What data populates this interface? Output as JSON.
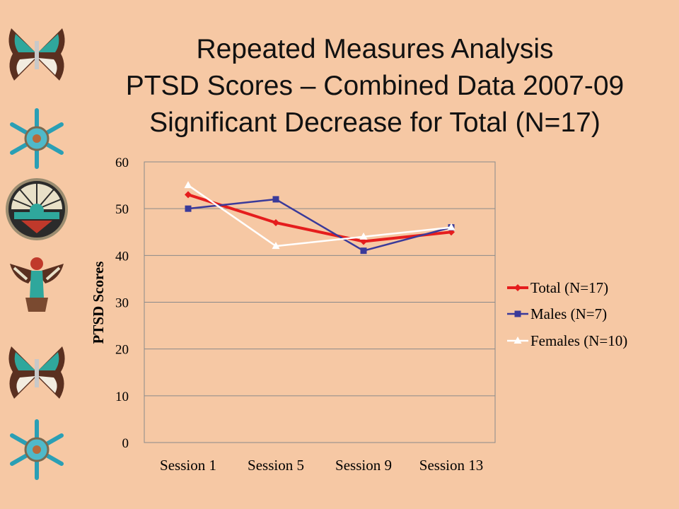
{
  "slide": {
    "title_lines": [
      "Repeated Measures Analysis",
      "PTSD Scores – Combined Data 2007-09",
      "Significant Decrease for Total (N=17)"
    ]
  },
  "decorations": [
    "butterfly-icon",
    "snowflake-icon",
    "sun-medallion-icon",
    "kachina-bird-icon",
    "butterfly-icon",
    "snowflake-icon"
  ],
  "colors": {
    "background": "#f6c8a4",
    "total": "#e51d1d",
    "males": "#3a3a9a",
    "females": "#ffffff"
  },
  "chart_data": {
    "type": "line",
    "title": "",
    "xlabel": "",
    "ylabel": "PTSD Scores",
    "categories": [
      "Session 1",
      "Session 5",
      "Session 9",
      "Session 13"
    ],
    "ylim": [
      0,
      60
    ],
    "yticks": [
      0,
      10,
      20,
      30,
      40,
      50,
      60
    ],
    "grid": true,
    "legend_position": "right",
    "series": [
      {
        "name": "Total (N=17)",
        "values": [
          53,
          47,
          43,
          45
        ],
        "color": "#e51d1d",
        "marker": "diamond"
      },
      {
        "name": "Males (N=7)",
        "values": [
          50,
          52,
          41,
          46
        ],
        "color": "#3a3a9a",
        "marker": "square"
      },
      {
        "name": "Females (N=10)",
        "values": [
          55,
          42,
          44,
          46
        ],
        "color": "#ffffff",
        "marker": "triangle"
      }
    ]
  }
}
